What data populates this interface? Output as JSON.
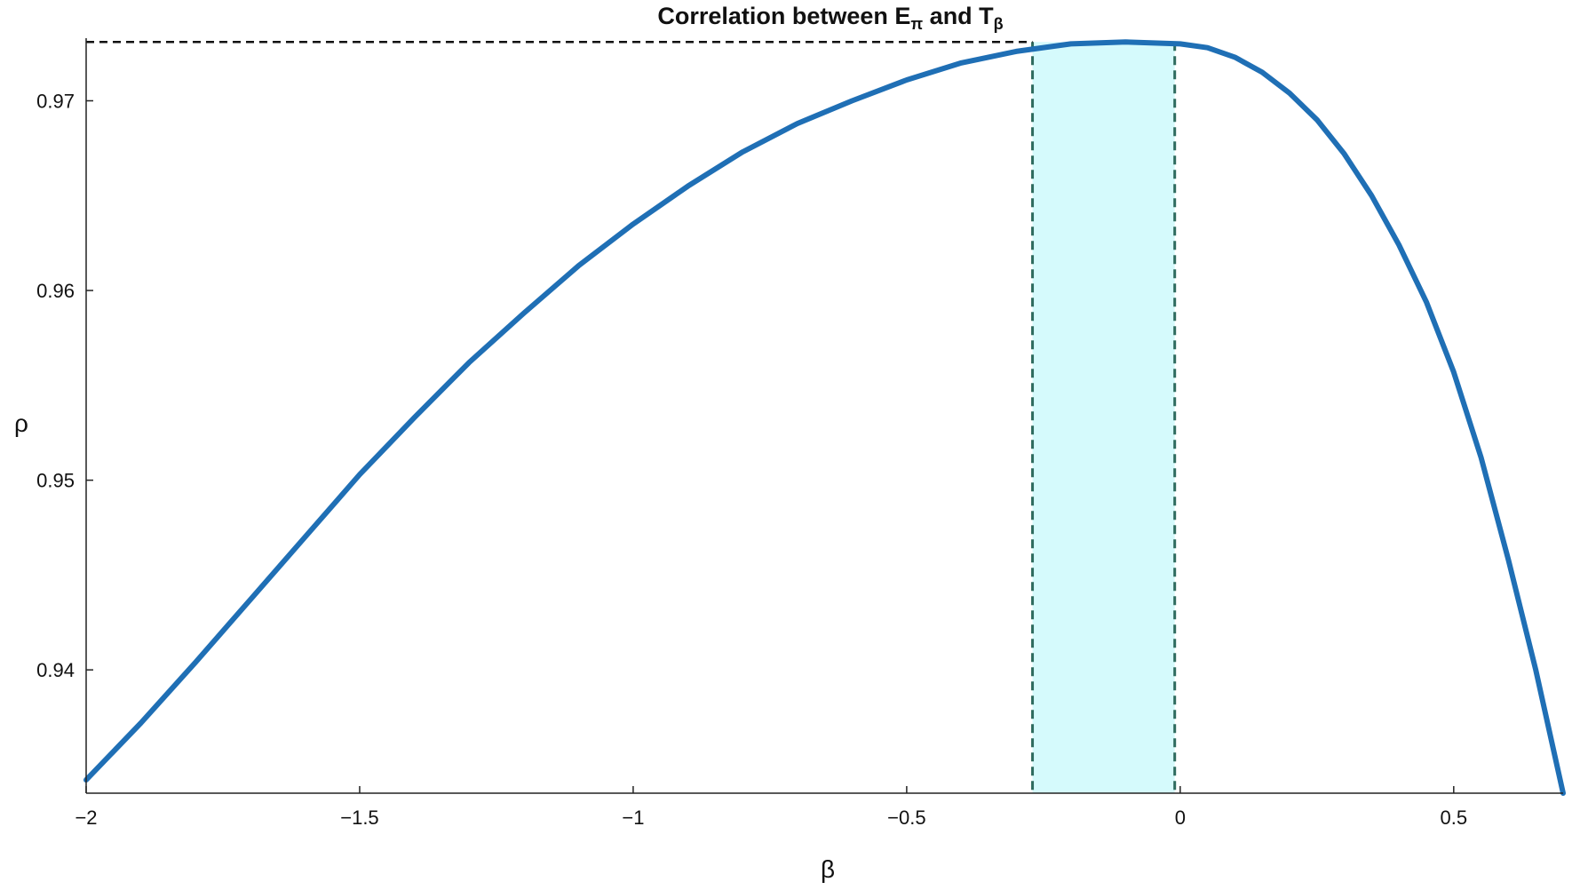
{
  "chart_data": {
    "type": "line",
    "title": {
      "prefix": "Correlation between E",
      "sub1": "π",
      "middle": " and T",
      "sub2": "β"
    },
    "xlabel": "β",
    "ylabel": "ρ",
    "xlim": [
      -2,
      0.7
    ],
    "ylim": [
      0.9335,
      0.9733
    ],
    "xticks": [
      {
        "value": -2,
        "label": "−2"
      },
      {
        "value": -1.5,
        "label": "−1.5"
      },
      {
        "value": -1,
        "label": "−1"
      },
      {
        "value": -0.5,
        "label": "−0.5"
      },
      {
        "value": 0,
        "label": "0"
      },
      {
        "value": 0.5,
        "label": "0.5"
      }
    ],
    "yticks": [
      {
        "value": 0.94,
        "label": "0.94"
      },
      {
        "value": 0.95,
        "label": "0.95"
      },
      {
        "value": 0.96,
        "label": "0.96"
      },
      {
        "value": 0.97,
        "label": "0.97"
      }
    ],
    "grid": false,
    "series": [
      {
        "color": "#1f6fb5",
        "x": [
          -2.0,
          -1.9,
          -1.8,
          -1.7,
          -1.6,
          -1.5,
          -1.4,
          -1.3,
          -1.2,
          -1.1,
          -1.0,
          -0.9,
          -0.8,
          -0.7,
          -0.6,
          -0.5,
          -0.4,
          -0.3,
          -0.2,
          -0.1,
          0.0,
          0.05,
          0.1,
          0.15,
          0.2,
          0.25,
          0.3,
          0.35,
          0.4,
          0.45,
          0.5,
          0.55,
          0.6,
          0.65,
          0.7
        ],
        "y": [
          0.9342,
          0.9372,
          0.9404,
          0.9437,
          0.947,
          0.9503,
          0.9533,
          0.9562,
          0.9588,
          0.9613,
          0.9635,
          0.9655,
          0.9673,
          0.9688,
          0.97,
          0.9711,
          0.972,
          0.9726,
          0.973,
          0.9731,
          0.973,
          0.9728,
          0.9723,
          0.9715,
          0.9704,
          0.969,
          0.9672,
          0.965,
          0.9624,
          0.9594,
          0.9557,
          0.9512,
          0.9458,
          0.94,
          0.9335
        ]
      }
    ],
    "reference_lines": {
      "max_value": 0.9731,
      "max_line_color": "#111111",
      "band_x": [
        -0.27,
        -0.01
      ],
      "band_color": "#d5fafc",
      "band_edge_color": "#2e6b5e"
    }
  }
}
